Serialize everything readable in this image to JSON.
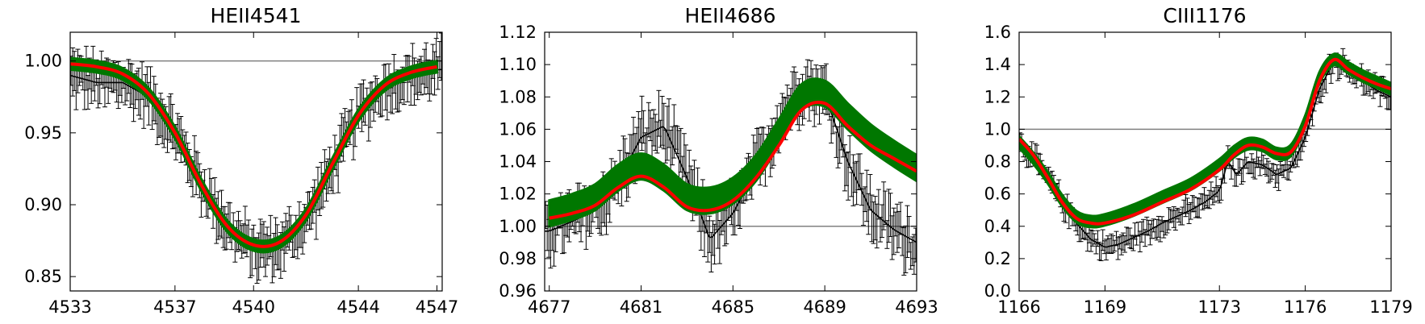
{
  "chart_data": [
    {
      "type": "line",
      "title": "HEII4541",
      "xlabel": "",
      "ylabel": "",
      "xlim": [
        4533,
        4547.2
      ],
      "ylim": [
        0.84,
        1.02
      ],
      "xticks": [
        4533,
        4537,
        4540,
        4544,
        4547
      ],
      "yticks": [
        0.85,
        0.9,
        0.95,
        1.0
      ],
      "ytick_labels": [
        "0.85",
        "0.90",
        "0.95",
        "1.00"
      ],
      "reference_line": 1.0,
      "observed": {
        "x": [
          4533,
          4534,
          4535,
          4536,
          4537,
          4538,
          4539,
          4540,
          4541,
          4542,
          4543,
          4544,
          4545,
          4546,
          4547
        ],
        "y": [
          0.99,
          0.985,
          0.985,
          0.975,
          0.95,
          0.915,
          0.885,
          0.868,
          0.87,
          0.888,
          0.925,
          0.962,
          0.982,
          0.988,
          0.994
        ],
        "err": 0.012
      },
      "model_band": {
        "x": [
          4533,
          4534,
          4535,
          4536,
          4537,
          4538,
          4539,
          4540,
          4541,
          4542,
          4543,
          4544,
          4545,
          4546,
          4547
        ],
        "y": [
          0.998,
          0.996,
          0.991,
          0.977,
          0.95,
          0.914,
          0.885,
          0.872,
          0.874,
          0.893,
          0.928,
          0.962,
          0.983,
          0.992,
          0.996
        ],
        "halfwidth": 0.004
      },
      "model_fit": {
        "x": [
          4533,
          4534,
          4535,
          4536,
          4537,
          4538,
          4539,
          4540,
          4541,
          4542,
          4543,
          4544,
          4545,
          4546,
          4547
        ],
        "y": [
          0.998,
          0.996,
          0.991,
          0.977,
          0.95,
          0.914,
          0.885,
          0.872,
          0.874,
          0.893,
          0.928,
          0.962,
          0.983,
          0.992,
          0.996
        ]
      }
    },
    {
      "type": "line",
      "title": "HEII4686",
      "xlabel": "",
      "ylabel": "",
      "xlim": [
        4676.8,
        4693
      ],
      "ylim": [
        0.96,
        1.12
      ],
      "xticks": [
        4677,
        4681,
        4685,
        4689,
        4693
      ],
      "yticks": [
        0.96,
        0.98,
        1.0,
        1.02,
        1.04,
        1.06,
        1.08,
        1.1,
        1.12
      ],
      "ytick_labels": [
        "0.96",
        "0.98",
        "1.00",
        "1.02",
        "1.04",
        "1.06",
        "1.08",
        "1.10",
        "1.12"
      ],
      "reference_line": 1.0,
      "observed": {
        "x": [
          4677,
          4678,
          4679,
          4680,
          4681,
          4682,
          4683,
          4684,
          4685,
          4686,
          4687,
          4688,
          4689,
          4690,
          4691,
          4692,
          4693
        ],
        "y": [
          0.997,
          1.003,
          1.01,
          1.028,
          1.055,
          1.062,
          1.03,
          0.992,
          1.008,
          1.035,
          1.065,
          1.088,
          1.082,
          1.04,
          1.01,
          0.998,
          0.99
        ],
        "err": 0.012
      },
      "model_band": {
        "x": [
          4677,
          4678,
          4679,
          4680,
          4681,
          4682,
          4683,
          4684,
          4685,
          4686,
          4687,
          4688,
          4689,
          4690,
          4691,
          4692,
          4693
        ],
        "y": [
          1.008,
          1.012,
          1.018,
          1.03,
          1.037,
          1.03,
          1.018,
          1.016,
          1.022,
          1.036,
          1.058,
          1.08,
          1.082,
          1.068,
          1.055,
          1.045,
          1.036
        ],
        "halfwidth": 0.008
      },
      "model_fit": {
        "x": [
          4677,
          4678,
          4679,
          4680,
          4681,
          4682,
          4683,
          4684,
          4685,
          4686,
          4687,
          4688,
          4689,
          4690,
          4691,
          4692,
          4693
        ],
        "y": [
          1.005,
          1.008,
          1.013,
          1.024,
          1.031,
          1.024,
          1.012,
          1.01,
          1.016,
          1.03,
          1.05,
          1.072,
          1.076,
          1.062,
          1.05,
          1.042,
          1.034
        ]
      }
    },
    {
      "type": "line",
      "title": "CIII1176",
      "xlabel": "",
      "ylabel": "",
      "xlim": [
        1166,
        1179
      ],
      "ylim": [
        0.0,
        1.6
      ],
      "xticks": [
        1166,
        1169,
        1173,
        1176,
        1179
      ],
      "yticks": [
        0.0,
        0.2,
        0.4,
        0.6,
        0.8,
        1.0,
        1.2,
        1.4,
        1.6
      ],
      "ytick_labels": [
        "0.0",
        "0.2",
        "0.4",
        "0.6",
        "0.8",
        "1.0",
        "1.2",
        "1.4",
        "1.6"
      ],
      "reference_line": 1.0,
      "observed": {
        "x": [
          1166,
          1166.5,
          1167,
          1167.5,
          1168,
          1168.5,
          1169,
          1169.5,
          1170,
          1170.5,
          1171,
          1171.5,
          1172,
          1172.5,
          1173,
          1173.3,
          1173.6,
          1174,
          1174.5,
          1175,
          1175.5,
          1176,
          1176.5,
          1177,
          1177.5,
          1178,
          1178.5,
          1179
        ],
        "y": [
          0.92,
          0.82,
          0.7,
          0.55,
          0.42,
          0.32,
          0.27,
          0.29,
          0.33,
          0.37,
          0.42,
          0.46,
          0.5,
          0.55,
          0.62,
          0.8,
          0.72,
          0.8,
          0.78,
          0.72,
          0.76,
          0.95,
          1.25,
          1.42,
          1.38,
          1.3,
          1.24,
          1.2
        ],
        "err": 0.05
      },
      "model_band": {
        "x": [
          1166,
          1166.5,
          1167,
          1167.5,
          1168,
          1168.5,
          1169,
          1170,
          1171,
          1172,
          1173,
          1173.5,
          1174,
          1174.5,
          1175,
          1175.5,
          1176,
          1176.5,
          1177,
          1177.5,
          1178,
          1178.5,
          1179
        ],
        "y": [
          0.92,
          0.82,
          0.7,
          0.56,
          0.46,
          0.43,
          0.44,
          0.5,
          0.58,
          0.66,
          0.78,
          0.86,
          0.91,
          0.9,
          0.85,
          0.87,
          1.05,
          1.32,
          1.43,
          1.38,
          1.33,
          1.29,
          1.25
        ],
        "halfwidth": 0.035
      },
      "model_fit": {
        "x": [
          1166,
          1166.5,
          1167,
          1167.5,
          1168,
          1168.5,
          1169,
          1170,
          1171,
          1172,
          1173,
          1173.5,
          1174,
          1174.5,
          1175,
          1175.5,
          1176,
          1176.5,
          1177,
          1177.5,
          1178,
          1178.5,
          1179
        ],
        "y": [
          0.94,
          0.84,
          0.7,
          0.55,
          0.45,
          0.42,
          0.42,
          0.47,
          0.55,
          0.63,
          0.75,
          0.84,
          0.9,
          0.89,
          0.85,
          0.86,
          1.02,
          1.3,
          1.43,
          1.37,
          1.32,
          1.28,
          1.25
        ]
      }
    }
  ],
  "colors": {
    "observed": "#000000",
    "model_band": "#007700",
    "model_fit": "#ff0000",
    "reference_line": "#808080",
    "frame": "#000000"
  }
}
